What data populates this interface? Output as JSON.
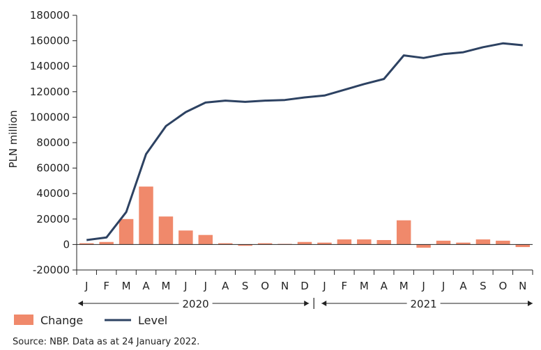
{
  "chart_data": {
    "type": "bar+line",
    "title": "",
    "ylabel": "PLN million",
    "xlabel": "",
    "ylim": [
      -20000,
      180000
    ],
    "yticks": [
      -20000,
      0,
      20000,
      40000,
      60000,
      80000,
      100000,
      120000,
      140000,
      160000,
      180000
    ],
    "categories": [
      "J",
      "F",
      "M",
      "A",
      "M",
      "J",
      "J",
      "A",
      "S",
      "O",
      "N",
      "D",
      "J",
      "F",
      "M",
      "A",
      "M",
      "J",
      "J",
      "A",
      "S",
      "O",
      "N"
    ],
    "years": [
      {
        "label": "2020",
        "start_index": 0,
        "end_index": 11
      },
      {
        "label": "2021",
        "start_index": 12,
        "end_index": 22
      }
    ],
    "series": [
      {
        "name": "Change",
        "kind": "bar",
        "color": "#f0896b",
        "values": [
          1000,
          2000,
          20000,
          45500,
          22000,
          11000,
          7500,
          1000,
          -1000,
          1000,
          500,
          2000,
          1500,
          4000,
          4000,
          3500,
          19000,
          -2500,
          3000,
          1500,
          4000,
          3000,
          -2000
        ]
      },
      {
        "name": "Level",
        "kind": "line",
        "color": "#2d4262",
        "values": [
          3500,
          5500,
          25500,
          71000,
          93000,
          104000,
          111500,
          113000,
          112000,
          113000,
          113500,
          115500,
          117000,
          121500,
          126000,
          130000,
          148500,
          146500,
          149500,
          151000,
          155000,
          158000,
          156500
        ]
      }
    ],
    "legend_position": "bottom-left",
    "source_note": "Source: NBP. Data as at 24 January 2022."
  }
}
